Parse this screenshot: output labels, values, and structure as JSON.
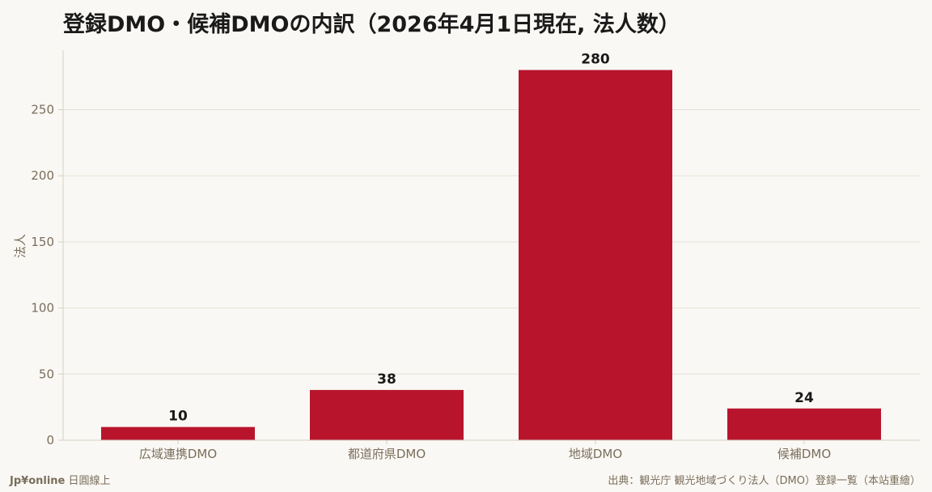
{
  "footer": {
    "brand_name": "Jp¥online",
    "brand_tagline": "日圓線上",
    "source": "出典：観光庁 観光地域づくり法人（DMO）登録一覧（本站重繪）"
  },
  "colors": {
    "bar": "#b8152d",
    "background": "#faf8f4",
    "grid": "#e5e1d8",
    "axis": "#d4cfc5"
  },
  "chart_data": {
    "type": "bar",
    "title": "登録DMO・候補DMOの内訳（2026年4月1日現在, 法人数）",
    "xlabel": "",
    "ylabel": "法人",
    "categories": [
      "広域連携DMO",
      "都道府県DMO",
      "地域DMO",
      "候補DMO"
    ],
    "values": [
      10,
      38,
      280,
      24
    ],
    "ylim": [
      0,
      295
    ],
    "yticks": [
      0,
      50,
      100,
      150,
      200,
      250
    ],
    "grid": true,
    "legend": "none"
  }
}
